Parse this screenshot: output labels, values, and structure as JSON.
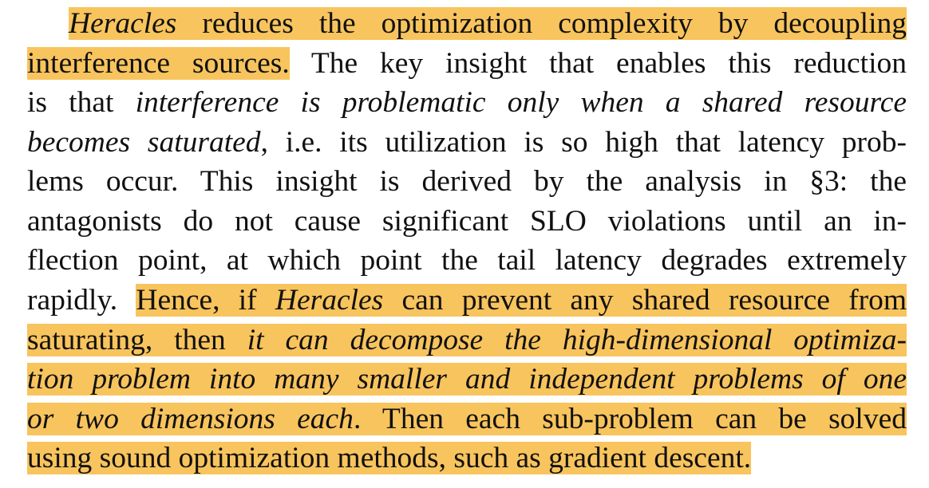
{
  "highlight_color": "#f8c45d",
  "lines": [
    [
      {
        "t": "Heracles",
        "i": true,
        "h": true
      },
      {
        "t": " reduces the optimization complexity by decoupling",
        "i": false,
        "h": true
      }
    ],
    [
      {
        "t": "interference sources.",
        "i": false,
        "h": true
      },
      {
        "t": " The key insight that enables this reduction",
        "i": false,
        "h": false
      }
    ],
    [
      {
        "t": "is that ",
        "i": false,
        "h": false
      },
      {
        "t": "interference is problematic only when a shared resource",
        "i": true,
        "h": false
      }
    ],
    [
      {
        "t": "becomes saturated",
        "i": true,
        "h": false
      },
      {
        "t": ", i.e. its utilization is so high that latency prob-",
        "i": false,
        "h": false
      }
    ],
    [
      {
        "t": "lems occur. This insight is derived by the analysis in §3: the",
        "i": false,
        "h": false
      }
    ],
    [
      {
        "t": "antagonists do not cause significant SLO violations until an in-",
        "i": false,
        "h": false
      }
    ],
    [
      {
        "t": "flection point, at which point the tail latency degrades extremely",
        "i": false,
        "h": false
      }
    ],
    [
      {
        "t": "rapidly. ",
        "i": false,
        "h": false
      },
      {
        "t": "Hence, if ",
        "i": false,
        "h": true
      },
      {
        "t": "Heracles",
        "i": true,
        "h": true
      },
      {
        "t": " can prevent any shared resource from",
        "i": false,
        "h": true
      }
    ],
    [
      {
        "t": "saturating, then ",
        "i": false,
        "h": true
      },
      {
        "t": "it can decompose the high-dimensional optimiza-",
        "i": true,
        "h": true
      }
    ],
    [
      {
        "t": "tion problem into many smaller and independent problems of one",
        "i": true,
        "h": true
      }
    ],
    [
      {
        "t": "or two dimensions each",
        "i": true,
        "h": true
      },
      {
        "t": ". Then each sub-problem can be solved",
        "i": false,
        "h": true
      }
    ],
    [
      {
        "t": "using sound optimization methods, such as gradient descent.",
        "i": false,
        "h": true
      }
    ]
  ]
}
